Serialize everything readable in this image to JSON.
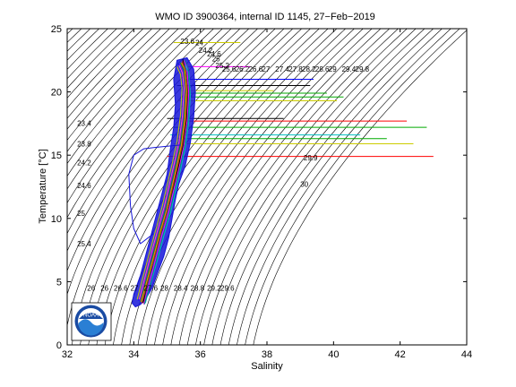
{
  "chart_data": {
    "type": "line",
    "title": "WMO ID 3900364, internal ID 1145, 27−Feb−2019",
    "xlabel": "Salinity",
    "ylabel": "Temperature [°C]",
    "xlim": [
      32,
      44
    ],
    "ylim": [
      0,
      25
    ],
    "xticks": [
      "32",
      "34",
      "36",
      "38",
      "40",
      "42",
      "44"
    ],
    "yticks": [
      "0",
      "5",
      "10",
      "15",
      "20",
      "25"
    ],
    "grid": false,
    "logo_text": "NOAA",
    "density_isolines": {
      "sigma_range": [
        16.6,
        30.2
      ],
      "step": 0.2,
      "color": "#000000",
      "labels": [
        {
          "text": "23.6",
          "x": 35.4,
          "y": 23.8
        },
        {
          "text": "24",
          "x": 35.85,
          "y": 23.7
        },
        {
          "text": "24.2",
          "x": 35.95,
          "y": 23.1
        },
        {
          "text": "24.6",
          "x": 36.2,
          "y": 22.8
        },
        {
          "text": "25",
          "x": 36.35,
          "y": 22.4
        },
        {
          "text": "25.2",
          "x": 36.45,
          "y": 21.9
        },
        {
          "text": "25.6",
          "x": 36.65,
          "y": 21.6
        },
        {
          "text": "26.2",
          "x": 37.05,
          "y": 21.6
        },
        {
          "text": "26.6",
          "x": 37.45,
          "y": 21.6
        },
        {
          "text": "27",
          "x": 37.85,
          "y": 21.6
        },
        {
          "text": "27.4",
          "x": 38.25,
          "y": 21.6
        },
        {
          "text": "27.8",
          "x": 38.65,
          "y": 21.6
        },
        {
          "text": "28.2",
          "x": 39.05,
          "y": 21.6
        },
        {
          "text": "28.6",
          "x": 39.45,
          "y": 21.6
        },
        {
          "text": "29",
          "x": 39.85,
          "y": 21.6
        },
        {
          "text": "29.4",
          "x": 40.25,
          "y": 21.6
        },
        {
          "text": "29.8",
          "x": 40.65,
          "y": 21.6
        },
        {
          "text": "23.4",
          "x": 32.3,
          "y": 17.3
        },
        {
          "text": "23.8",
          "x": 32.3,
          "y": 15.7
        },
        {
          "text": "24.2",
          "x": 32.3,
          "y": 14.2
        },
        {
          "text": "24.6",
          "x": 32.3,
          "y": 12.4
        },
        {
          "text": "25",
          "x": 32.3,
          "y": 10.2
        },
        {
          "text": "25.4",
          "x": 32.3,
          "y": 7.8
        },
        {
          "text": "26",
          "x": 32.6,
          "y": 4.3
        },
        {
          "text": "26",
          "x": 33.0,
          "y": 4.3
        },
        {
          "text": "26.6",
          "x": 33.4,
          "y": 4.3
        },
        {
          "text": "27",
          "x": 33.9,
          "y": 4.3
        },
        {
          "text": "27.6",
          "x": 34.3,
          "y": 4.3
        },
        {
          "text": "28",
          "x": 34.8,
          "y": 4.3
        },
        {
          "text": "28.4",
          "x": 35.2,
          "y": 4.3
        },
        {
          "text": "28.8",
          "x": 35.7,
          "y": 4.3
        },
        {
          "text": "29.2",
          "x": 36.2,
          "y": 4.3
        },
        {
          "text": "29.6",
          "x": 36.6,
          "y": 4.3
        },
        {
          "text": "29.9",
          "x": 39.1,
          "y": 14.6
        },
        {
          "text": "30",
          "x": 39.0,
          "y": 12.5
        }
      ]
    },
    "profile_envelope": {
      "color": "#1515d8",
      "points": [
        [
          34.05,
          3.0
        ],
        [
          34.2,
          3.2
        ],
        [
          34.35,
          3.6
        ],
        [
          34.55,
          4.5
        ],
        [
          34.7,
          5.6
        ],
        [
          34.9,
          7.0
        ],
        [
          35.05,
          8.5
        ],
        [
          35.15,
          10.0
        ],
        [
          35.25,
          11.5
        ],
        [
          35.35,
          12.7
        ],
        [
          35.55,
          14.2
        ],
        [
          35.7,
          16.0
        ],
        [
          35.8,
          18.0
        ],
        [
          35.85,
          20.0
        ],
        [
          35.8,
          21.8
        ],
        [
          35.6,
          22.7
        ],
        [
          35.3,
          22.5
        ],
        [
          35.2,
          21.0
        ],
        [
          35.25,
          19.0
        ],
        [
          35.2,
          17.2
        ],
        [
          35.1,
          15.5
        ],
        [
          35.0,
          13.5
        ],
        [
          34.8,
          11.5
        ],
        [
          34.6,
          9.5
        ],
        [
          34.4,
          7.5
        ],
        [
          34.2,
          5.5
        ],
        [
          34.0,
          4.0
        ],
        [
          33.95,
          3.3
        ],
        [
          34.05,
          3.0
        ]
      ]
    },
    "profile_colors": [
      "#ff0000",
      "#00aa00",
      "#0000ff",
      "#ff00ff",
      "#00bfbf",
      "#cccc00",
      "#000000",
      "#ff8800",
      "#8800ff",
      "#008888",
      "#885500",
      "#ff66aa"
    ],
    "profiles": [
      [
        [
          34.25,
          3.3
        ],
        [
          34.4,
          4.8
        ],
        [
          34.6,
          6.8
        ],
        [
          34.8,
          8.8
        ],
        [
          35.0,
          10.6
        ],
        [
          35.15,
          12.3
        ],
        [
          35.3,
          14.0
        ],
        [
          35.45,
          15.8
        ],
        [
          35.55,
          17.8
        ],
        [
          35.6,
          20.0
        ],
        [
          35.55,
          21.8
        ],
        [
          35.45,
          22.4
        ]
      ],
      [
        [
          34.2,
          3.4
        ],
        [
          34.35,
          4.9
        ],
        [
          34.55,
          6.9
        ],
        [
          34.75,
          8.8
        ],
        [
          34.95,
          10.7
        ],
        [
          35.1,
          12.4
        ],
        [
          35.25,
          14.1
        ],
        [
          35.4,
          15.9
        ],
        [
          35.5,
          17.9
        ],
        [
          35.55,
          20.1
        ],
        [
          35.5,
          21.7
        ],
        [
          35.4,
          22.3
        ]
      ],
      [
        [
          34.15,
          3.5
        ],
        [
          34.3,
          5.0
        ],
        [
          34.5,
          7.0
        ],
        [
          34.7,
          8.9
        ],
        [
          34.9,
          10.8
        ],
        [
          35.05,
          12.5
        ],
        [
          35.2,
          14.2
        ],
        [
          35.35,
          16.0
        ],
        [
          35.45,
          18.0
        ],
        [
          35.5,
          20.2
        ],
        [
          35.45,
          21.6
        ],
        [
          35.35,
          22.2
        ]
      ],
      [
        [
          34.3,
          3.2
        ],
        [
          34.45,
          4.7
        ],
        [
          34.65,
          6.7
        ],
        [
          34.85,
          8.7
        ],
        [
          35.05,
          10.5
        ],
        [
          35.2,
          12.2
        ],
        [
          35.35,
          13.9
        ],
        [
          35.5,
          15.7
        ],
        [
          35.6,
          17.7
        ],
        [
          35.65,
          19.9
        ],
        [
          35.6,
          21.9
        ],
        [
          35.5,
          22.5
        ]
      ],
      [
        [
          34.35,
          3.3
        ],
        [
          34.5,
          4.8
        ],
        [
          34.7,
          6.6
        ],
        [
          34.9,
          8.6
        ],
        [
          35.1,
          10.4
        ],
        [
          35.25,
          12.1
        ],
        [
          35.4,
          13.8
        ],
        [
          35.55,
          15.6
        ],
        [
          35.65,
          17.6
        ],
        [
          35.7,
          19.8
        ],
        [
          35.65,
          21.5
        ],
        [
          35.55,
          22.1
        ]
      ],
      [
        [
          34.1,
          3.6
        ],
        [
          34.25,
          5.1
        ],
        [
          34.45,
          7.1
        ],
        [
          34.65,
          9.0
        ],
        [
          34.85,
          10.9
        ],
        [
          35.0,
          12.6
        ],
        [
          35.15,
          14.3
        ],
        [
          35.3,
          16.1
        ],
        [
          35.4,
          18.1
        ],
        [
          35.45,
          20.3
        ],
        [
          35.4,
          21.4
        ],
        [
          35.3,
          22.0
        ]
      ],
      [
        [
          34.28,
          3.3
        ],
        [
          34.42,
          5.0
        ],
        [
          34.62,
          6.9
        ],
        [
          34.82,
          8.9
        ],
        [
          35.02,
          10.7
        ],
        [
          35.18,
          12.4
        ],
        [
          35.33,
          14.0
        ],
        [
          35.48,
          15.8
        ],
        [
          35.58,
          17.9
        ],
        [
          35.62,
          20.0
        ],
        [
          35.57,
          21.3
        ],
        [
          35.47,
          22.6
        ]
      ],
      [
        [
          34.22,
          3.4
        ],
        [
          34.38,
          4.9
        ],
        [
          34.58,
          6.8
        ],
        [
          34.78,
          8.8
        ],
        [
          34.98,
          10.6
        ],
        [
          35.13,
          12.3
        ],
        [
          35.28,
          14.0
        ],
        [
          35.43,
          15.8
        ],
        [
          35.53,
          17.8
        ],
        [
          35.58,
          20.1
        ],
        [
          35.53,
          21.8
        ],
        [
          35.43,
          22.3
        ]
      ],
      [
        [
          34.18,
          3.5
        ],
        [
          34.33,
          5.0
        ],
        [
          34.53,
          7.0
        ],
        [
          34.73,
          8.9
        ],
        [
          34.93,
          10.8
        ],
        [
          35.08,
          12.5
        ],
        [
          35.23,
          14.2
        ],
        [
          35.38,
          16.0
        ],
        [
          35.48,
          18.0
        ],
        [
          35.53,
          20.2
        ],
        [
          35.48,
          21.6
        ],
        [
          35.38,
          22.2
        ]
      ],
      [
        [
          34.32,
          3.2
        ],
        [
          34.48,
          4.7
        ],
        [
          34.68,
          6.7
        ],
        [
          34.88,
          8.7
        ],
        [
          35.08,
          10.5
        ],
        [
          35.23,
          12.2
        ],
        [
          35.38,
          13.9
        ],
        [
          35.53,
          15.7
        ],
        [
          35.63,
          17.7
        ],
        [
          35.68,
          19.9
        ],
        [
          35.63,
          21.9
        ],
        [
          35.53,
          22.5
        ]
      ],
      [
        [
          34.26,
          3.4
        ],
        [
          34.41,
          4.9
        ],
        [
          34.61,
          6.8
        ],
        [
          34.81,
          8.8
        ],
        [
          35.01,
          10.6
        ],
        [
          35.16,
          12.3
        ],
        [
          35.31,
          14.0
        ],
        [
          35.46,
          15.8
        ],
        [
          35.56,
          17.8
        ],
        [
          35.61,
          20.0
        ],
        [
          35.56,
          21.7
        ],
        [
          35.46,
          22.4
        ]
      ],
      [
        [
          34.16,
          3.6
        ],
        [
          34.31,
          5.1
        ],
        [
          34.51,
          7.1
        ],
        [
          34.71,
          9.0
        ],
        [
          34.91,
          10.9
        ],
        [
          35.06,
          12.6
        ],
        [
          35.21,
          14.3
        ],
        [
          35.36,
          16.1
        ],
        [
          35.46,
          18.1
        ],
        [
          35.51,
          20.3
        ],
        [
          35.46,
          21.5
        ],
        [
          35.36,
          22.1
        ]
      ]
    ],
    "outlier_profile": {
      "color": "#1515d8",
      "points": [
        [
          34.6,
          8.8
        ],
        [
          34.2,
          8.0
        ],
        [
          34.0,
          9.2
        ],
        [
          33.9,
          11.0
        ],
        [
          33.85,
          13.5
        ],
        [
          34.0,
          15.0
        ],
        [
          34.3,
          15.5
        ],
        [
          34.6,
          15.6
        ],
        [
          35.0,
          15.7
        ],
        [
          35.4,
          15.8
        ]
      ]
    },
    "surface_spikes": [
      {
        "color": "#ff0000",
        "s_min": 35.0,
        "s_max": 43.0,
        "t": 14.9
      },
      {
        "color": "#cccc00",
        "s_min": 35.2,
        "s_max": 42.4,
        "t": 15.9
      },
      {
        "color": "#00aa00",
        "s_min": 35.3,
        "s_max": 41.6,
        "t": 16.3
      },
      {
        "color": "#00bfbf",
        "s_min": 35.1,
        "s_max": 40.8,
        "t": 16.6
      },
      {
        "color": "#00aa00",
        "s_min": 35.2,
        "s_max": 42.8,
        "t": 17.2
      },
      {
        "color": "#ff0000",
        "s_min": 35.4,
        "s_max": 42.2,
        "t": 17.7
      },
      {
        "color": "#000000",
        "s_min": 35.0,
        "s_max": 38.5,
        "t": 17.9
      },
      {
        "color": "#cccc00",
        "s_min": 35.3,
        "s_max": 40.1,
        "t": 19.3
      },
      {
        "color": "#00aa00",
        "s_min": 35.4,
        "s_max": 40.3,
        "t": 19.6
      },
      {
        "color": "#00aa00",
        "s_min": 35.5,
        "s_max": 39.8,
        "t": 19.9
      },
      {
        "color": "#cccc00",
        "s_min": 35.4,
        "s_max": 38.2,
        "t": 20.1
      },
      {
        "color": "#000000",
        "s_min": 35.3,
        "s_max": 39.3,
        "t": 20.5
      },
      {
        "color": "#0000ff",
        "s_min": 35.5,
        "s_max": 39.4,
        "t": 21.0
      },
      {
        "color": "#ff00ff",
        "s_min": 35.6,
        "s_max": 37.5,
        "t": 22.0
      },
      {
        "color": "#cccc00",
        "s_min": 35.2,
        "s_max": 37.2,
        "t": 23.9
      }
    ]
  }
}
